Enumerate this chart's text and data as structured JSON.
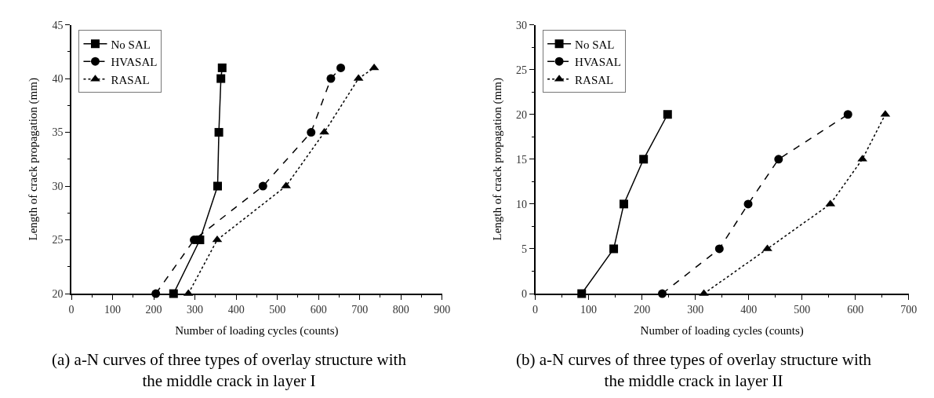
{
  "chart_data": [
    {
      "type": "line",
      "xlabel": "Number of loading cycles (counts)",
      "ylabel": "Length of crack propagation (mm)",
      "xlim": [
        0,
        900
      ],
      "xticks": [
        0,
        100,
        200,
        300,
        400,
        500,
        600,
        700,
        800,
        900
      ],
      "ylim": [
        20,
        45
      ],
      "yticks": [
        20,
        25,
        30,
        35,
        40,
        45
      ],
      "legend": "top left",
      "annotations": [
        "(a) a-N curves of three types of overlay structure with the middle crack in layer I"
      ],
      "series": [
        {
          "name": "No SAL",
          "color": "#000000",
          "marker": "square",
          "line_style": "solid",
          "x": [
            248,
            312,
            355,
            358,
            363,
            366
          ],
          "values": [
            20,
            25,
            30,
            35,
            40,
            41
          ]
        },
        {
          "name": "HVASAL",
          "color": "#000000",
          "marker": "circle",
          "line_style": "dashed",
          "x": [
            205,
            298,
            465,
            582,
            630,
            654
          ],
          "values": [
            20,
            25,
            30,
            35,
            40,
            41
          ]
        },
        {
          "name": "RASAL",
          "color": "#000000",
          "marker": "triangle",
          "line_style": "dotted",
          "x": [
            284,
            354,
            521,
            614,
            697,
            735
          ],
          "values": [
            20,
            25,
            30,
            35,
            40,
            41
          ]
        }
      ]
    },
    {
      "type": "line",
      "xlabel": "Number of loading cycles (counts)",
      "ylabel": "Length of crack propagation (mm)",
      "xlim": [
        0,
        700
      ],
      "xticks": [
        0,
        100,
        200,
        300,
        400,
        500,
        600,
        700
      ],
      "ylim": [
        0,
        30
      ],
      "yticks": [
        0,
        5,
        10,
        15,
        20,
        25,
        30
      ],
      "legend": "top left",
      "annotations": [
        "(b) a-N curves of three types of overlay structure with the middle crack in layer II"
      ],
      "series": [
        {
          "name": "No SAL",
          "color": "#000000",
          "marker": "square",
          "line_style": "solid",
          "x": [
            87,
            147,
            166,
            203,
            248
          ],
          "values": [
            0,
            5,
            10,
            15,
            20
          ]
        },
        {
          "name": "HVASAL",
          "color": "#000000",
          "marker": "circle",
          "line_style": "dashed",
          "x": [
            238,
            345,
            399,
            456,
            586
          ],
          "values": [
            0,
            5,
            10,
            15,
            20
          ]
        },
        {
          "name": "RASAL",
          "color": "#000000",
          "marker": "triangle",
          "line_style": "dotted",
          "x": [
            316,
            435,
            553,
            613,
            656
          ],
          "values": [
            0,
            5,
            10,
            15,
            20
          ]
        }
      ]
    }
  ]
}
